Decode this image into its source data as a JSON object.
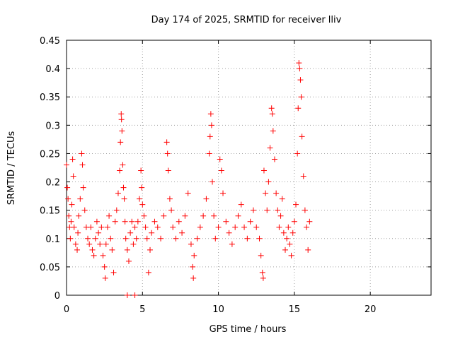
{
  "chart_data": {
    "type": "scatter",
    "title": "Day 174 of 2025, SRMTID for receiver lliv",
    "xlabel": "GPS time / hours",
    "ylabel": "SRMTID / TECUs",
    "xlim": [
      0,
      24
    ],
    "ylim": [
      0,
      0.45
    ],
    "x_ticks": [
      0,
      5,
      10,
      15,
      20
    ],
    "x_tick_labels": [
      "0",
      "5",
      "10",
      "15",
      "20"
    ],
    "y_ticks": [
      0,
      0.05,
      0.1,
      0.15,
      0.2,
      0.25,
      0.3,
      0.35,
      0.4,
      0.45
    ],
    "y_tick_labels": [
      "0",
      "0.05",
      "0.1",
      "0.15",
      "0.2",
      "0.25",
      "0.3",
      "0.35",
      "0.4",
      "0.45"
    ],
    "grid": true,
    "marker": "+",
    "color": "#ff0000",
    "series": [
      {
        "name": "SRMTID",
        "points": [
          [
            0.0,
            0.23
          ],
          [
            0.05,
            0.19
          ],
          [
            0.1,
            0.17
          ],
          [
            0.15,
            0.14
          ],
          [
            0.2,
            0.12
          ],
          [
            0.25,
            0.1
          ],
          [
            0.3,
            0.13
          ],
          [
            0.35,
            0.16
          ],
          [
            0.4,
            0.24
          ],
          [
            0.45,
            0.21
          ],
          [
            0.5,
            0.12
          ],
          [
            0.6,
            0.09
          ],
          [
            0.7,
            0.08
          ],
          [
            0.75,
            0.11
          ],
          [
            0.8,
            0.14
          ],
          [
            0.9,
            0.17
          ],
          [
            1.0,
            0.25
          ],
          [
            1.05,
            0.23
          ],
          [
            1.1,
            0.19
          ],
          [
            1.2,
            0.15
          ],
          [
            1.3,
            0.12
          ],
          [
            1.4,
            0.1
          ],
          [
            1.5,
            0.09
          ],
          [
            1.6,
            0.12
          ],
          [
            1.7,
            0.08
          ],
          [
            1.8,
            0.07
          ],
          [
            1.9,
            0.1
          ],
          [
            2.0,
            0.13
          ],
          [
            2.1,
            0.11
          ],
          [
            2.2,
            0.09
          ],
          [
            2.3,
            0.12
          ],
          [
            2.4,
            0.07
          ],
          [
            2.5,
            0.05
          ],
          [
            2.55,
            0.03
          ],
          [
            2.6,
            0.09
          ],
          [
            2.7,
            0.12
          ],
          [
            2.8,
            0.14
          ],
          [
            2.9,
            0.1
          ],
          [
            3.0,
            0.08
          ],
          [
            3.1,
            0.04
          ],
          [
            3.2,
            0.13
          ],
          [
            3.3,
            0.15
          ],
          [
            3.4,
            0.18
          ],
          [
            3.5,
            0.22
          ],
          [
            3.55,
            0.27
          ],
          [
            3.6,
            0.32
          ],
          [
            3.62,
            0.31
          ],
          [
            3.65,
            0.29
          ],
          [
            3.7,
            0.23
          ],
          [
            3.75,
            0.19
          ],
          [
            3.8,
            0.17
          ],
          [
            3.85,
            0.13
          ],
          [
            3.9,
            0.1
          ],
          [
            4.0,
            0.08
          ],
          [
            4.1,
            0.06
          ],
          [
            4.2,
            0.11
          ],
          [
            4.3,
            0.13
          ],
          [
            4.4,
            0.09
          ],
          [
            4.5,
            0.12
          ],
          [
            4.6,
            0.1
          ],
          [
            4.7,
            0.13
          ],
          [
            4.8,
            0.17
          ],
          [
            4.9,
            0.22
          ],
          [
            4.95,
            0.19
          ],
          [
            5.0,
            0.16
          ],
          [
            5.1,
            0.14
          ],
          [
            5.2,
            0.12
          ],
          [
            5.3,
            0.1
          ],
          [
            5.4,
            0.04
          ],
          [
            5.5,
            0.08
          ],
          [
            5.6,
            0.11
          ],
          [
            5.8,
            0.13
          ],
          [
            6.0,
            0.12
          ],
          [
            6.2,
            0.1
          ],
          [
            6.4,
            0.14
          ],
          [
            6.6,
            0.27
          ],
          [
            6.65,
            0.25
          ],
          [
            6.7,
            0.22
          ],
          [
            6.8,
            0.17
          ],
          [
            6.9,
            0.15
          ],
          [
            7.0,
            0.12
          ],
          [
            7.2,
            0.1
          ],
          [
            7.4,
            0.13
          ],
          [
            7.6,
            0.11
          ],
          [
            7.8,
            0.14
          ],
          [
            8.0,
            0.18
          ],
          [
            8.2,
            0.09
          ],
          [
            8.3,
            0.05
          ],
          [
            8.35,
            0.03
          ],
          [
            8.4,
            0.07
          ],
          [
            8.6,
            0.1
          ],
          [
            8.8,
            0.12
          ],
          [
            9.0,
            0.14
          ],
          [
            9.2,
            0.17
          ],
          [
            9.4,
            0.25
          ],
          [
            9.45,
            0.28
          ],
          [
            9.5,
            0.32
          ],
          [
            9.55,
            0.3
          ],
          [
            9.6,
            0.2
          ],
          [
            9.7,
            0.14
          ],
          [
            9.8,
            0.1
          ],
          [
            10.0,
            0.12
          ],
          [
            10.1,
            0.24
          ],
          [
            10.2,
            0.22
          ],
          [
            10.3,
            0.18
          ],
          [
            10.5,
            0.13
          ],
          [
            10.7,
            0.11
          ],
          [
            10.9,
            0.09
          ],
          [
            11.1,
            0.12
          ],
          [
            11.3,
            0.14
          ],
          [
            11.5,
            0.16
          ],
          [
            11.7,
            0.12
          ],
          [
            11.9,
            0.1
          ],
          [
            12.1,
            0.13
          ],
          [
            12.3,
            0.15
          ],
          [
            12.5,
            0.12
          ],
          [
            12.7,
            0.1
          ],
          [
            12.8,
            0.07
          ],
          [
            12.9,
            0.04
          ],
          [
            12.95,
            0.03
          ],
          [
            13.0,
            0.22
          ],
          [
            13.1,
            0.18
          ],
          [
            13.2,
            0.15
          ],
          [
            13.3,
            0.2
          ],
          [
            13.4,
            0.26
          ],
          [
            13.5,
            0.33
          ],
          [
            13.55,
            0.32
          ],
          [
            13.6,
            0.29
          ],
          [
            13.7,
            0.24
          ],
          [
            13.8,
            0.18
          ],
          [
            13.9,
            0.15
          ],
          [
            14.0,
            0.12
          ],
          [
            14.1,
            0.14
          ],
          [
            14.2,
            0.17
          ],
          [
            14.3,
            0.11
          ],
          [
            14.4,
            0.08
          ],
          [
            14.5,
            0.1
          ],
          [
            14.6,
            0.12
          ],
          [
            14.7,
            0.09
          ],
          [
            14.8,
            0.07
          ],
          [
            14.9,
            0.11
          ],
          [
            15.0,
            0.13
          ],
          [
            15.1,
            0.16
          ],
          [
            15.2,
            0.25
          ],
          [
            15.25,
            0.33
          ],
          [
            15.3,
            0.41
          ],
          [
            15.35,
            0.4
          ],
          [
            15.4,
            0.38
          ],
          [
            15.45,
            0.35
          ],
          [
            15.5,
            0.28
          ],
          [
            15.6,
            0.21
          ],
          [
            15.7,
            0.15
          ],
          [
            15.8,
            0.12
          ],
          [
            15.9,
            0.08
          ],
          [
            16.0,
            0.13
          ],
          [
            4.0,
            0.0
          ],
          [
            4.5,
            0.0
          ]
        ]
      }
    ]
  }
}
